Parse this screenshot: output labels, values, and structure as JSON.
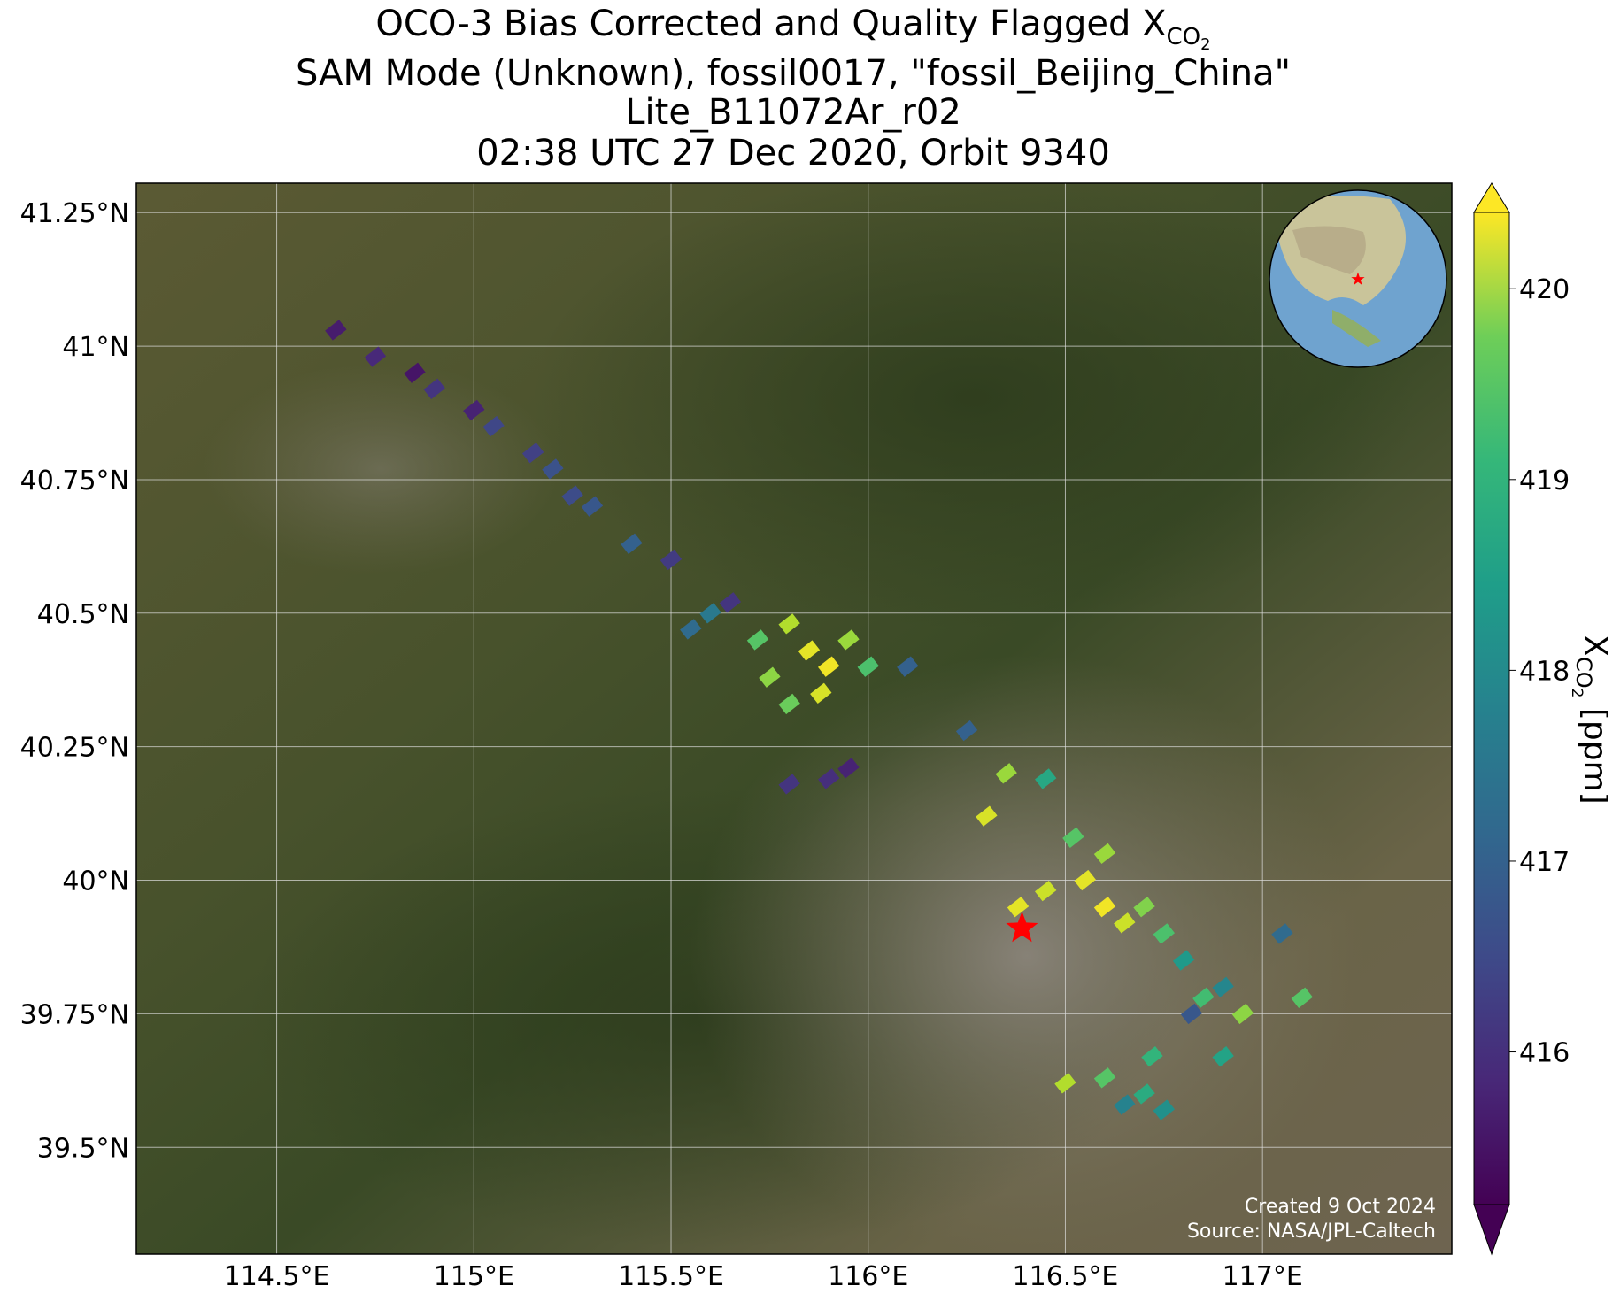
{
  "chart_data": {
    "type": "scatter",
    "title": {
      "text": "OCO-3 Bias Corrected and Quality Flagged X",
      "subscript": "CO",
      "subsubscript": "2"
    },
    "subtitles": [
      "SAM Mode (Unknown), fossil0017, \"fossil_Beijing_China\"",
      "Lite_B11072Ar_r02",
      "02:38 UTC 27 Dec 2020, Orbit 9340"
    ],
    "xlim": [
      114.144,
      117.48
    ],
    "ylim": [
      39.3,
      41.305
    ],
    "xticks": [
      {
        "value": 114.5,
        "label": "114.5°E"
      },
      {
        "value": 115,
        "label": "115°E"
      },
      {
        "value": 115.5,
        "label": "115.5°E"
      },
      {
        "value": 116,
        "label": "116°E"
      },
      {
        "value": 116.5,
        "label": "116.5°E"
      },
      {
        "value": 117,
        "label": "117°E"
      }
    ],
    "yticks": [
      {
        "value": 39.5,
        "label": "39.5°N"
      },
      {
        "value": 39.75,
        "label": "39.75°N"
      },
      {
        "value": 40,
        "label": "40°N"
      },
      {
        "value": 40.25,
        "label": "40.25°N"
      },
      {
        "value": 40.5,
        "label": "40.5°N"
      },
      {
        "value": 40.75,
        "label": "40.75°N"
      },
      {
        "value": 41,
        "label": "41°N"
      },
      {
        "value": 41.25,
        "label": "41.25°N"
      }
    ],
    "grid": true,
    "colormap": "viridis",
    "clim": [
      415.2,
      420.4
    ],
    "cticks": [
      416,
      417,
      418,
      419,
      420
    ],
    "colorbar_label": {
      "text": "X",
      "subscript": "CO",
      "subsubscript": "2",
      "suffix": " [ppm]"
    },
    "target": {
      "lon": 116.39,
      "lat": 39.91,
      "color": "#ff0000"
    },
    "annotations": [
      "Created 9 Oct 2024",
      "Source: NASA/JPL-Caltech"
    ],
    "x": [
      114.65,
      114.75,
      114.85,
      114.9,
      115.0,
      115.05,
      115.15,
      115.2,
      115.25,
      115.3,
      115.4,
      115.5,
      115.6,
      115.65,
      115.55,
      115.8,
      115.85,
      115.9,
      115.95,
      115.88,
      115.8,
      116.0,
      115.75,
      115.72,
      116.1,
      115.8,
      115.9,
      115.95,
      116.55,
      116.6,
      116.65,
      116.7,
      116.75,
      116.6,
      116.52,
      116.45,
      116.8,
      116.9,
      116.85,
      116.95,
      116.9,
      116.3,
      116.35,
      116.45,
      116.25,
      116.38,
      116.65,
      116.7,
      116.75,
      116.72,
      116.6,
      116.5,
      117.05,
      117.1,
      116.82
    ],
    "y": [
      41.03,
      40.98,
      40.95,
      40.92,
      40.88,
      40.85,
      40.8,
      40.77,
      40.72,
      40.7,
      40.63,
      40.6,
      40.5,
      40.52,
      40.47,
      40.48,
      40.43,
      40.4,
      40.45,
      40.35,
      40.33,
      40.4,
      40.38,
      40.45,
      40.4,
      40.18,
      40.19,
      40.21,
      40.0,
      39.95,
      39.92,
      39.95,
      39.9,
      40.05,
      40.08,
      39.98,
      39.85,
      39.8,
      39.78,
      39.75,
      39.67,
      40.12,
      40.2,
      40.19,
      40.28,
      39.95,
      39.58,
      39.6,
      39.57,
      39.67,
      39.63,
      39.62,
      39.9,
      39.78,
      39.75
    ],
    "values": [
      415.6,
      415.8,
      415.5,
      416.0,
      415.7,
      416.3,
      416.2,
      416.5,
      416.4,
      416.6,
      416.8,
      416.1,
      417.3,
      416.0,
      417.0,
      419.8,
      420.2,
      420.3,
      419.6,
      420.1,
      419.2,
      418.9,
      419.5,
      419.0,
      416.8,
      416.0,
      415.9,
      415.7,
      420.2,
      420.3,
      420.0,
      419.4,
      418.9,
      419.6,
      419.0,
      420.0,
      418.0,
      417.6,
      418.8,
      419.5,
      418.2,
      420.1,
      419.6,
      418.3,
      416.8,
      420.2,
      417.5,
      418.4,
      417.8,
      418.6,
      419.0,
      419.8,
      417.0,
      419.0,
      416.6
    ]
  }
}
